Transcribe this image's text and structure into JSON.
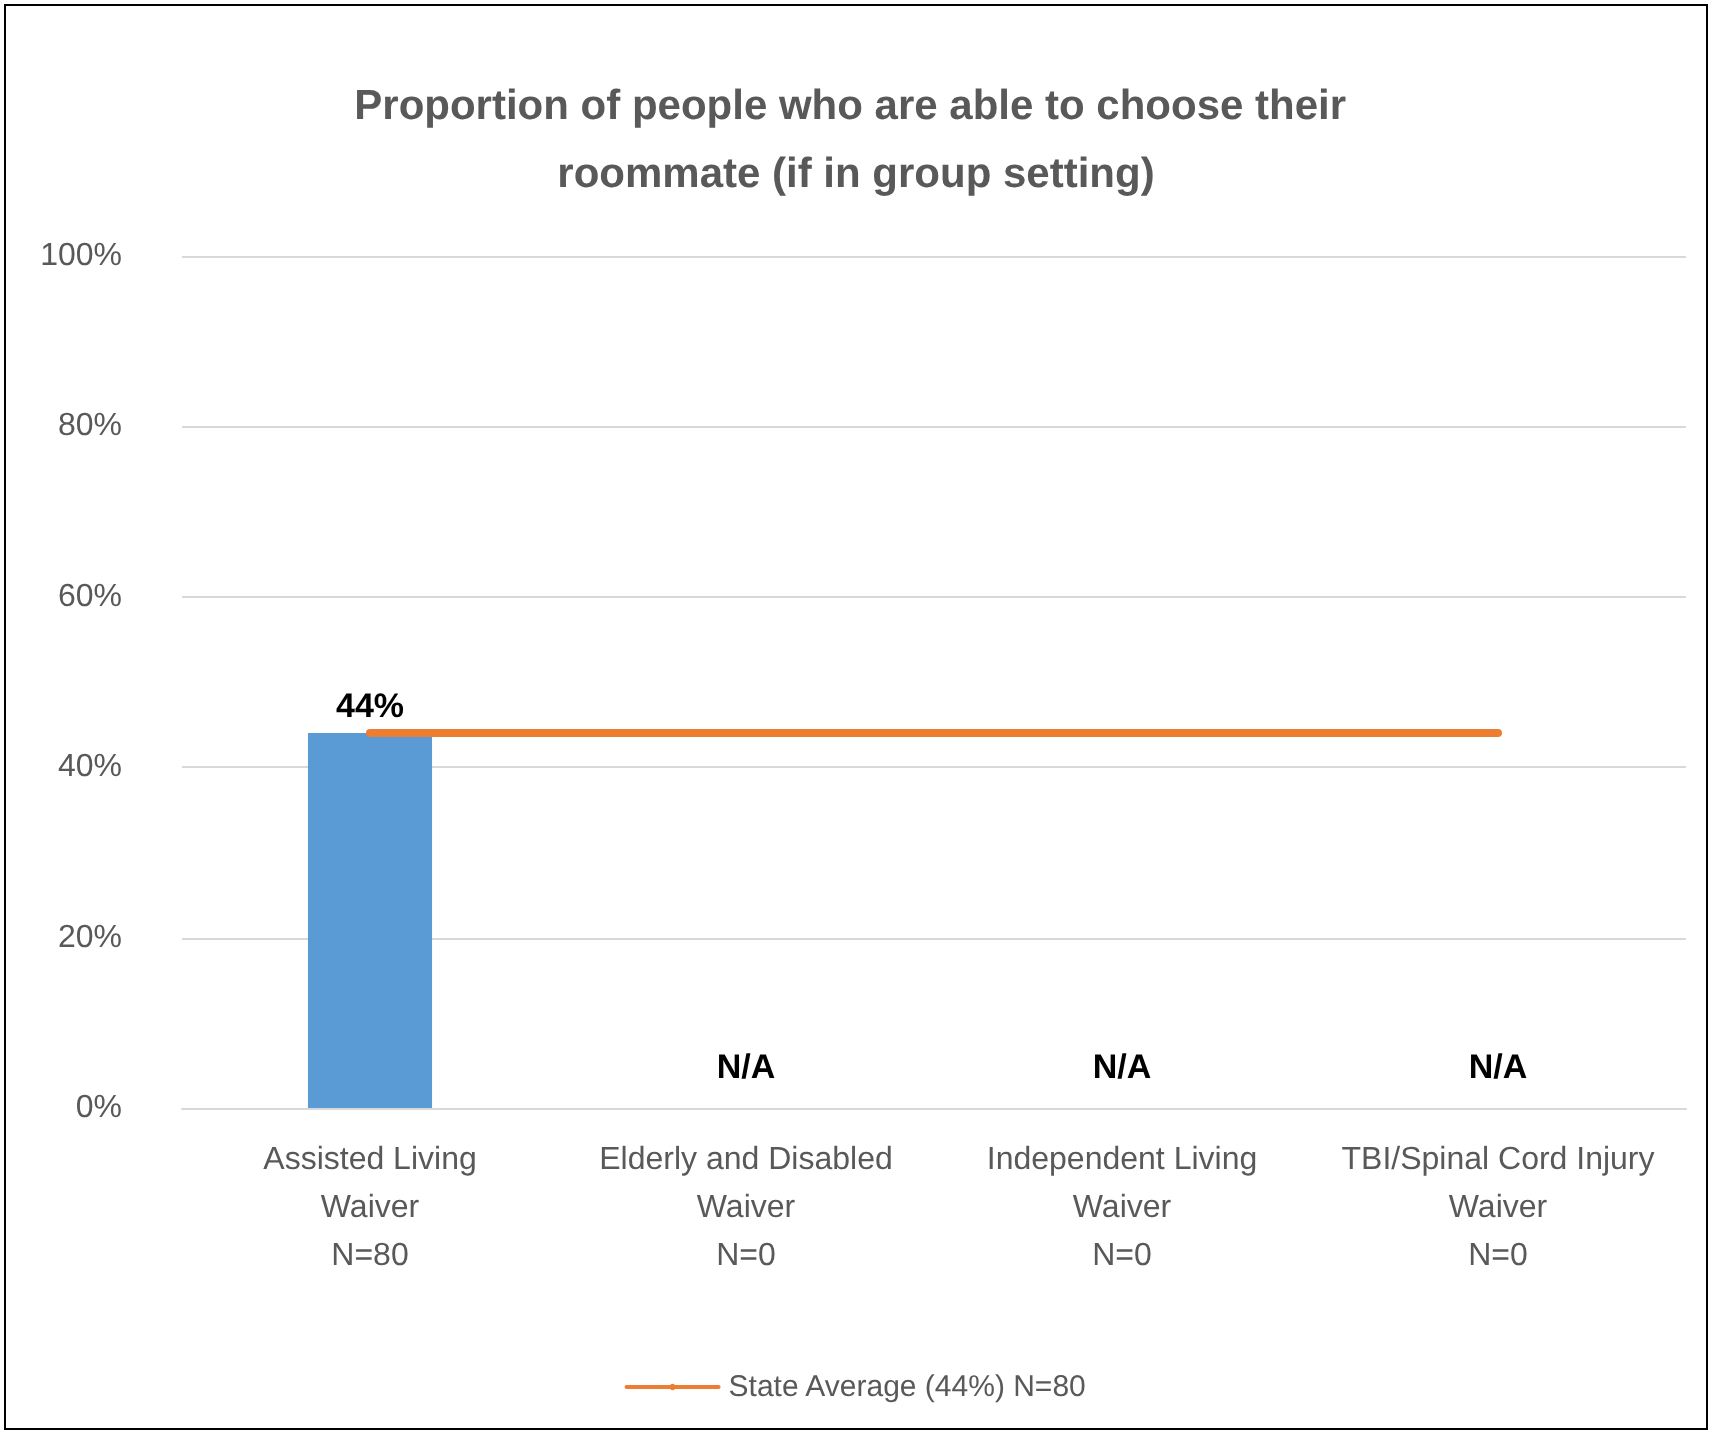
{
  "chart_data": {
    "type": "bar",
    "title": "Proportion of people who are able to choose their roommate (if in group setting)",
    "categories": [
      "Assisted Living\nWaiver\nN=80",
      "Elderly and Disabled\nWaiver\nN=0",
      "Independent Living\nWaiver\nN=0",
      "TBI/Spinal Cord Injury\nWaiver\nN=0"
    ],
    "series": [
      {
        "color": "#5b9bd5",
        "values": [
          44,
          null,
          null,
          null
        ],
        "value_labels": [
          "44%",
          "N/A",
          "N/A",
          "N/A"
        ]
      },
      {
        "type": "line",
        "name": "State Average (44%) N=80",
        "color": "#ed7d31",
        "values": [
          44,
          44,
          44,
          44
        ],
        "marker": "none",
        "line_style": "solid"
      }
    ],
    "ylim": [
      0,
      100
    ],
    "yticks": [
      {
        "value": 0,
        "label": "0%"
      },
      {
        "value": 20,
        "label": "20%"
      },
      {
        "value": 40,
        "label": "40%"
      },
      {
        "value": 60,
        "label": "60%"
      },
      {
        "value": 80,
        "label": "80%"
      },
      {
        "value": 100,
        "label": "100%"
      }
    ],
    "grid": "y",
    "legend": "bottom"
  }
}
